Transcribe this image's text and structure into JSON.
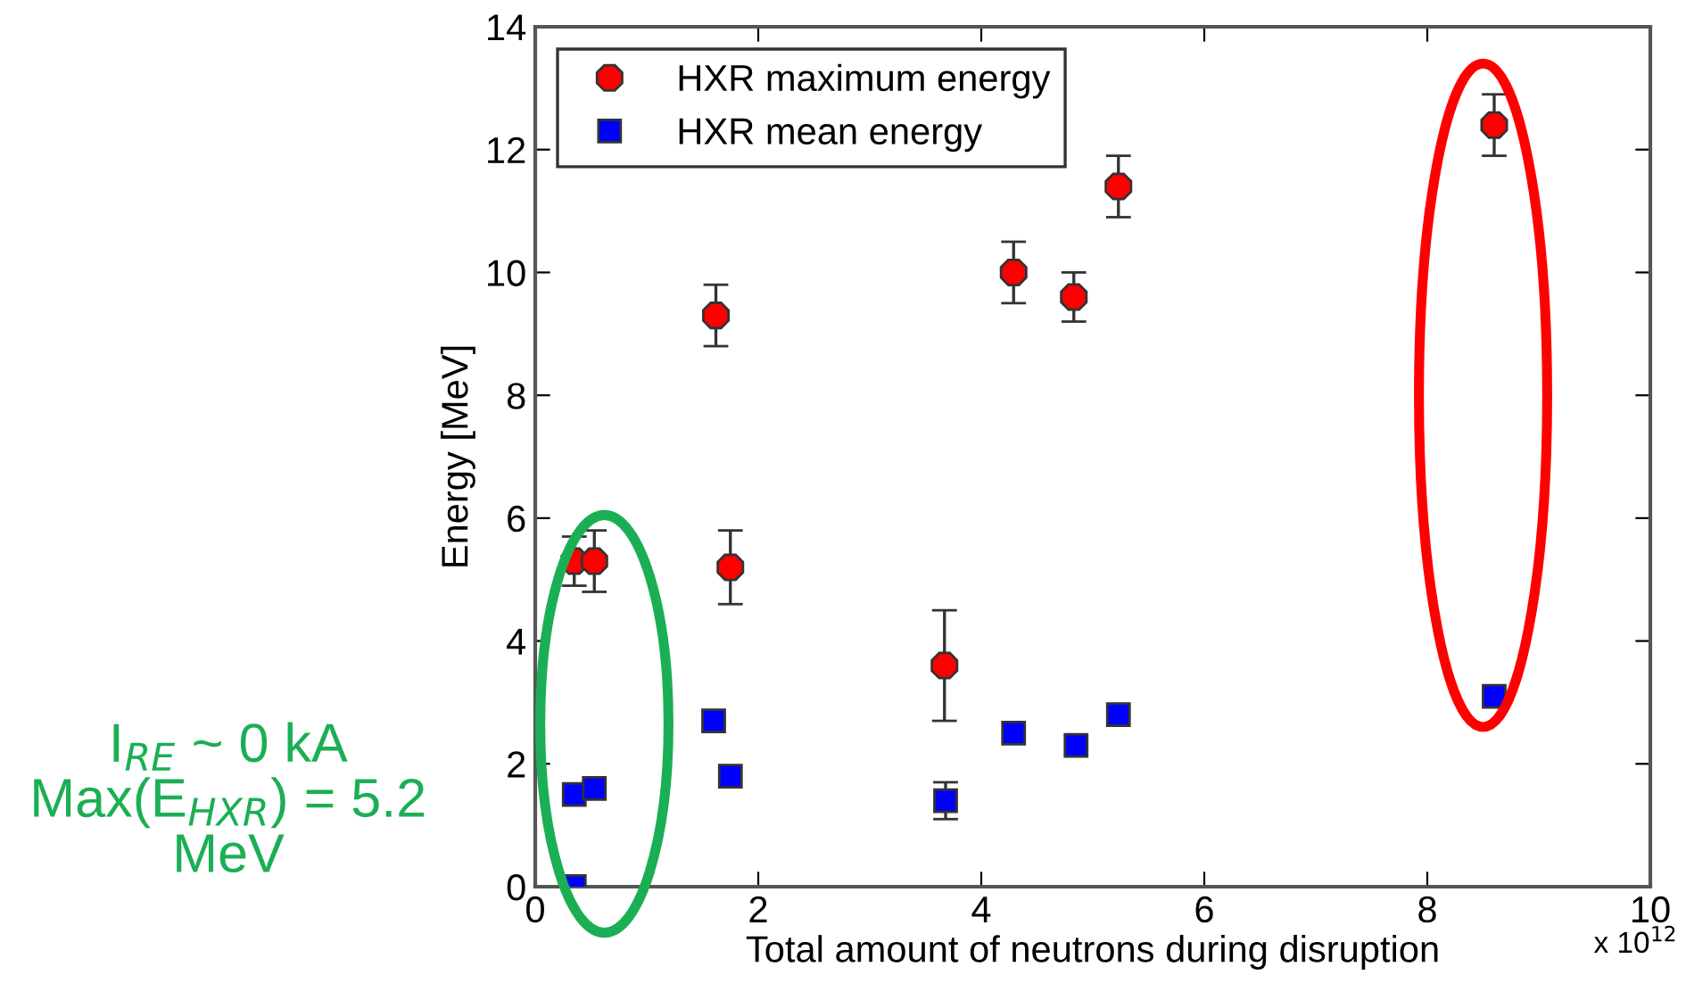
{
  "chart_data": {
    "type": "scatter",
    "xlabel": "Total amount of neutrons during disruption",
    "ylabel": "Energy [MeV]",
    "xlim": [
      0,
      10
    ],
    "xticks": [
      0,
      2,
      4,
      6,
      8,
      10
    ],
    "ylim": [
      0,
      14
    ],
    "yticks": [
      0,
      2,
      4,
      6,
      8,
      10,
      12,
      14
    ],
    "grid": false,
    "legend": "top left",
    "series": [
      {
        "name": "HXR maximum energy",
        "color": "#ff0000",
        "marker": "circle",
        "x": [
          0.35,
          0.53,
          1.62,
          1.75,
          3.67,
          4.29,
          4.83,
          5.23,
          8.6
        ],
        "values": [
          5.3,
          5.3,
          9.3,
          5.2,
          3.6,
          10.0,
          9.6,
          11.4,
          12.4
        ],
        "errors": [
          0.4,
          0.5,
          0.5,
          0.6,
          0.9,
          0.5,
          0.4,
          0.5,
          0.5
        ]
      },
      {
        "name": "HXR mean energy",
        "color": "#0000ff",
        "marker": "square",
        "x": [
          0.35,
          0.53,
          0.35,
          1.6,
          1.75,
          3.68,
          4.29,
          4.85,
          5.23,
          8.6
        ],
        "values": [
          1.5,
          1.6,
          0.0,
          2.7,
          1.8,
          1.4,
          2.5,
          2.3,
          2.8,
          3.1
        ],
        "errors": [
          null,
          null,
          null,
          null,
          null,
          0.3,
          null,
          null,
          null,
          null
        ]
      }
    ],
    "annotations": [
      "x 10$^{12}$",
      "I$_{RE}$ ~ 0 kA\nMax(E$_{HXR}$) = 5.2\nMeV"
    ]
  }
}
